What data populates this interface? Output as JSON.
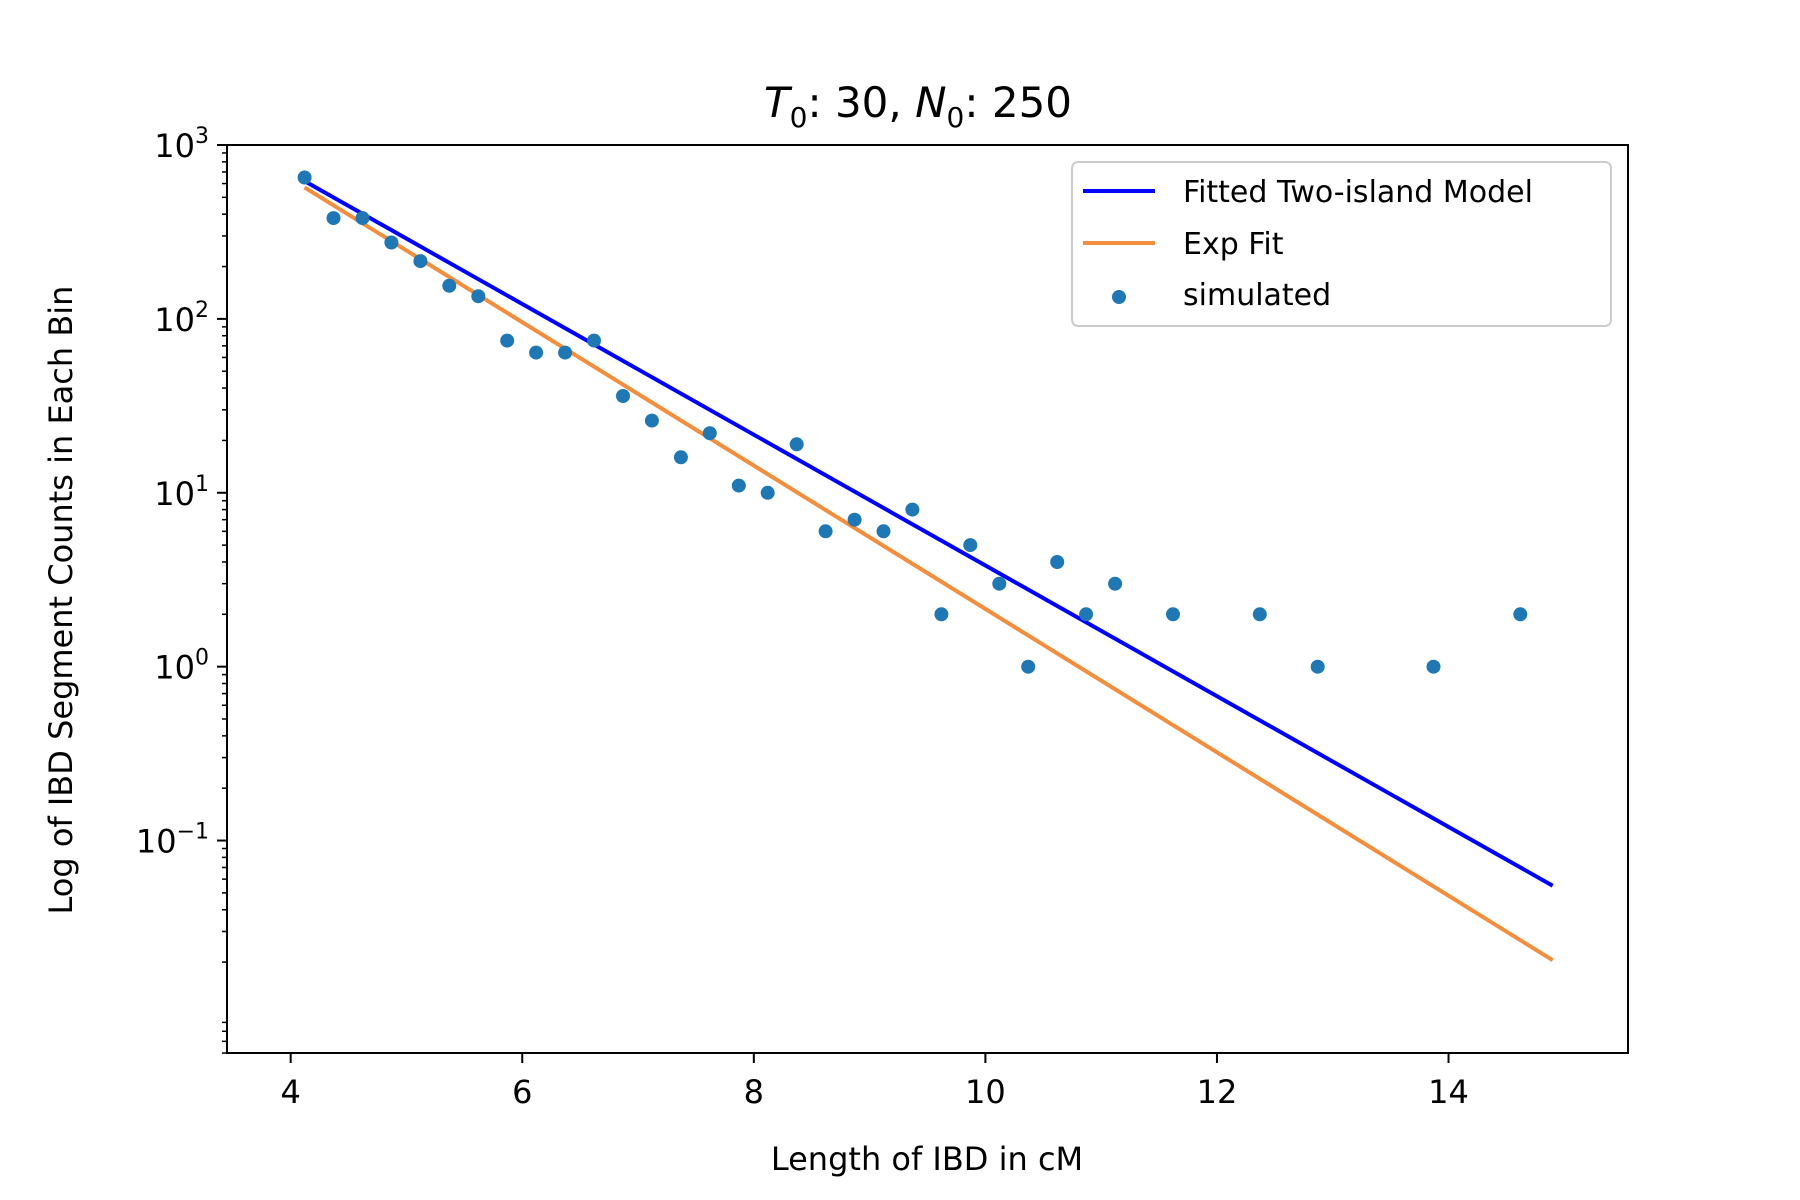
{
  "chart_data": {
    "type": "scatter",
    "title": {
      "t_symbol": "T",
      "t_sub": "0",
      "t_value": ": 30, ",
      "n_symbol": "N",
      "n_sub": "0",
      "n_value": ": 250"
    },
    "xlabel": "Length of IBD in cM",
    "ylabel": "Log of IBD Segment Counts in Each Bin",
    "xlim": [
      3.45,
      15.55
    ],
    "ylim": [
      0.006,
      1000
    ],
    "yscale": "log",
    "grid": false,
    "legend_position": "top-right",
    "x_ticks": [
      {
        "value": 4,
        "label": "4"
      },
      {
        "value": 6,
        "label": "6"
      },
      {
        "value": 8,
        "label": "8"
      },
      {
        "value": 10,
        "label": "10"
      },
      {
        "value": 12,
        "label": "12"
      },
      {
        "value": 14,
        "label": "14"
      }
    ],
    "y_ticks": [
      {
        "value": 1000,
        "base": "10",
        "exp": "3"
      },
      {
        "value": 100,
        "base": "10",
        "exp": "2"
      },
      {
        "value": 10,
        "base": "10",
        "exp": "1"
      },
      {
        "value": 1,
        "base": "10",
        "exp": "0"
      },
      {
        "value": 0.1,
        "base": "10",
        "exp": "−1"
      }
    ],
    "series": [
      {
        "name": "Fitted Two-island Model",
        "kind": "line",
        "color": "#0000ff",
        "x": [
          4.12,
          14.9
        ],
        "y": [
          620,
          0.055
        ]
      },
      {
        "name": "Exp Fit",
        "kind": "line",
        "color": "#f28e3d",
        "x": [
          4.12,
          14.9
        ],
        "y": [
          570,
          0.0205
        ]
      },
      {
        "name": "simulated",
        "kind": "scatter",
        "color": "#1f77b4",
        "x": [
          4.12,
          4.37,
          4.62,
          4.87,
          5.12,
          5.37,
          5.62,
          5.87,
          6.12,
          6.37,
          6.62,
          6.87,
          7.12,
          7.37,
          7.62,
          7.87,
          8.12,
          8.37,
          8.62,
          8.87,
          9.12,
          9.37,
          9.62,
          9.87,
          10.12,
          10.37,
          10.62,
          10.87,
          11.12,
          11.62,
          12.37,
          12.87,
          13.87,
          14.62
        ],
        "y": [
          650,
          380,
          380,
          275,
          215,
          155,
          135,
          75,
          64,
          64,
          75,
          36,
          26,
          16,
          22,
          11,
          10,
          19,
          6,
          7,
          6,
          8,
          2,
          5,
          3,
          1,
          4,
          2,
          3,
          2,
          2,
          1,
          1,
          2
        ]
      }
    ]
  }
}
